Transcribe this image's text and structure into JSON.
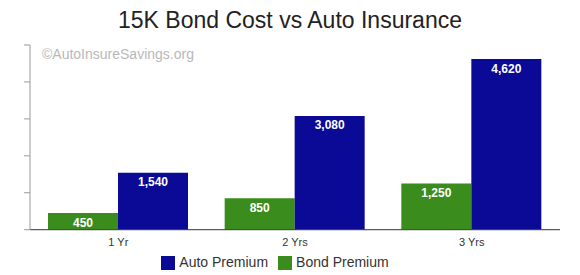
{
  "chart_data": {
    "type": "bar",
    "title": "15K Bond Cost vs Auto Insurance",
    "annotation": "©AutoInsureSavings.org",
    "categories": [
      "1 Yr",
      "2 Yrs",
      "3 Yrs"
    ],
    "series": [
      {
        "name": "Bond Premium",
        "color": "#3a8c1c",
        "values": [
          450,
          850,
          1250
        ],
        "value_labels": [
          "450",
          "850",
          "1,250"
        ]
      },
      {
        "name": "Auto Premium",
        "color": "#0a0a96",
        "values": [
          1540,
          3080,
          4620
        ],
        "value_labels": [
          "1,540",
          "3,080",
          "4,620"
        ]
      }
    ],
    "ylim": [
      0,
      5000
    ],
    "yticks": [
      0,
      1000,
      2000,
      3000,
      4000,
      5000
    ],
    "grid": false,
    "legend": "bottom",
    "data_labels": true,
    "tick_labels": "x"
  }
}
